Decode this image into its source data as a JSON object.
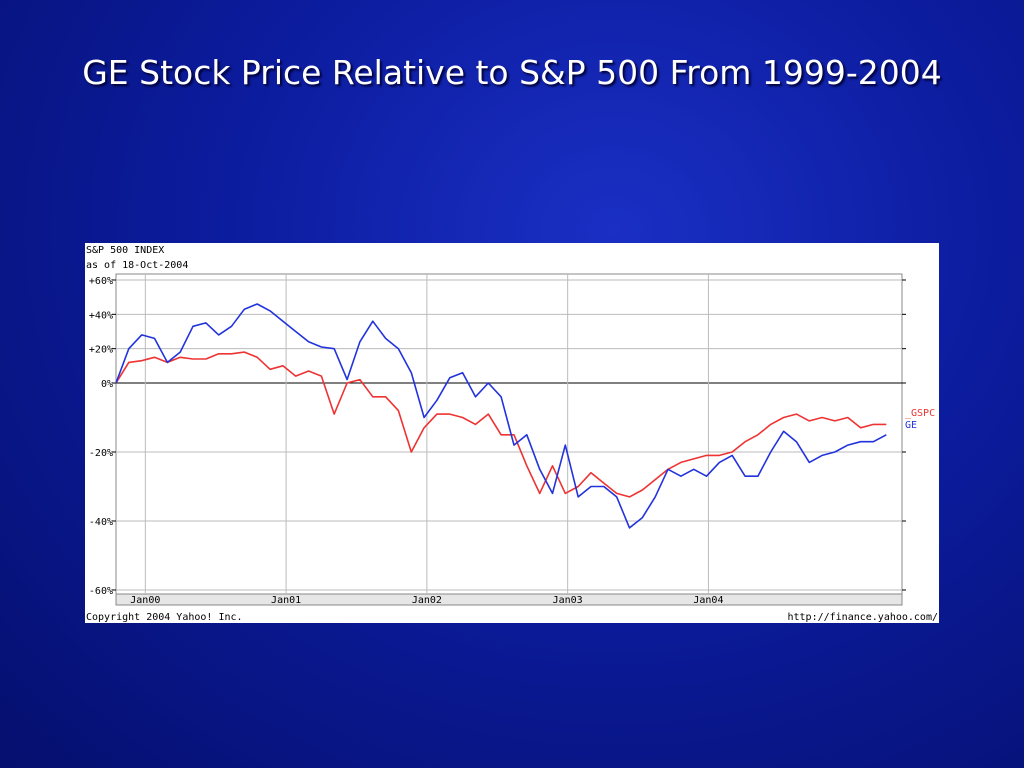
{
  "slide": {
    "title": "GE Stock Price Relative to S&P 500 From 1999-2004"
  },
  "chart_data": {
    "type": "line",
    "header_line1": "S&P 500 INDEX",
    "header_line2": "as of 18-Oct-2004",
    "copyright": "Copyright 2004 Yahoo! Inc.",
    "source": "http://finance.yahoo.com/",
    "ylim": [
      -60,
      60
    ],
    "xlim": [
      0,
      67
    ],
    "y_ticks": [
      {
        "value": 60,
        "label": "+60%"
      },
      {
        "value": 40,
        "label": "+40%"
      },
      {
        "value": 20,
        "label": "+20%"
      },
      {
        "value": 0,
        "label": "0%"
      },
      {
        "value": -20,
        "label": "-20%"
      },
      {
        "value": -40,
        "label": "-40%"
      },
      {
        "value": -60,
        "label": "-60%"
      }
    ],
    "x_ticks": [
      {
        "value": 2.5,
        "label": "Jan00"
      },
      {
        "value": 14.5,
        "label": "Jan01"
      },
      {
        "value": 26.5,
        "label": "Jan02"
      },
      {
        "value": 38.5,
        "label": "Jan03"
      },
      {
        "value": 50.5,
        "label": "Jan04"
      }
    ],
    "colors": {
      "_GSPC": "#ee3333",
      "GE": "#2233dd"
    },
    "series": [
      {
        "name": "_GSPC",
        "values": [
          0,
          12,
          13,
          15,
          12,
          15,
          14,
          14,
          17,
          17,
          18,
          15,
          8,
          10,
          4,
          7,
          4,
          -9,
          0,
          2,
          -4,
          -4,
          -8,
          -20,
          -13,
          -9,
          -9,
          -10,
          -12,
          -9,
          -15,
          -15,
          -24,
          -32,
          -24,
          -32,
          -30,
          -26,
          -29,
          -32,
          -33,
          -31,
          -28,
          -25,
          -23,
          -22,
          -21,
          -21,
          -20,
          -17,
          -15,
          -12,
          -10,
          -9,
          -11,
          -10,
          -11,
          -10,
          -13,
          -12,
          -12
        ]
      },
      {
        "name": "GE",
        "values": [
          0,
          20,
          28,
          26,
          12,
          18,
          33,
          35,
          28,
          33,
          43,
          46,
          42,
          36,
          30,
          24,
          21,
          20,
          2,
          24,
          36,
          26,
          20,
          6,
          -10,
          -5,
          3,
          6,
          -4,
          0,
          -4,
          -18,
          -15,
          -25,
          -32,
          -18,
          -33,
          -30,
          -30,
          -33,
          -42,
          -39,
          -33,
          -25,
          -27,
          -25,
          -27,
          -23,
          -21,
          -27,
          -27,
          -20,
          -14,
          -17,
          -23,
          -21,
          -20,
          -18,
          -17,
          -17,
          -15
        ]
      }
    ]
  }
}
